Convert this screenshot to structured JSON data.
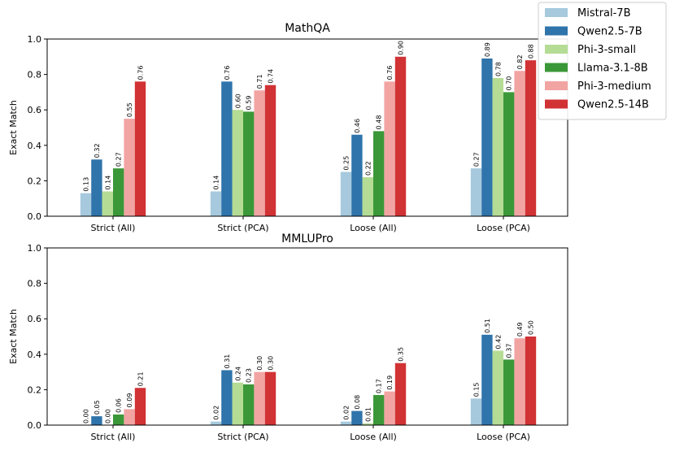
{
  "chart_data": [
    {
      "type": "bar",
      "title": "MathQA",
      "ylabel": "Exact Match",
      "xlabel": "",
      "ylim": [
        0,
        1.0
      ],
      "yticks": [
        0.0,
        0.2,
        0.4,
        0.6,
        0.8,
        1.0
      ],
      "ytick_labels": [
        "0.0",
        "0.2",
        "0.4",
        "0.6",
        "0.8",
        "1.0"
      ],
      "categories": [
        "Strict (All)",
        "Strict (PCA)",
        "Loose (All)",
        "Loose (PCA)"
      ],
      "series": [
        {
          "name": "Mistral-7B",
          "color": "#a6c9dd",
          "values": [
            0.13,
            0.14,
            0.25,
            0.27
          ],
          "labels": [
            "0.13",
            "0.14",
            "0.25",
            "0.27"
          ]
        },
        {
          "name": "Qwen2.5-7B",
          "color": "#2f74ab",
          "values": [
            0.32,
            0.76,
            0.46,
            0.89
          ],
          "labels": [
            "0.32",
            "0.76",
            "0.46",
            "0.89"
          ]
        },
        {
          "name": "Phi-3-small",
          "color": "#b4dc94",
          "values": [
            0.14,
            0.6,
            0.22,
            0.78
          ],
          "labels": [
            "0.14",
            "0.60",
            "0.22",
            "0.78"
          ]
        },
        {
          "name": "Llama-3.1-8B",
          "color": "#3b9838",
          "values": [
            0.27,
            0.59,
            0.48,
            0.7
          ],
          "labels": [
            "0.27",
            "0.59",
            "0.48",
            "0.70"
          ]
        },
        {
          "name": "Phi-3-medium",
          "color": "#f2a4a3",
          "values": [
            0.55,
            0.71,
            0.76,
            0.82
          ],
          "labels": [
            "0.55",
            "0.71",
            "0.76",
            "0.82"
          ]
        },
        {
          "name": "Qwen2.5-14B",
          "color": "#d13234",
          "values": [
            0.76,
            0.74,
            0.9,
            0.88
          ],
          "labels": [
            "0.76",
            "0.74",
            "0.90",
            "0.88"
          ]
        }
      ]
    },
    {
      "type": "bar",
      "title": "MMLUPro",
      "ylabel": "Exact Match",
      "xlabel": "",
      "ylim": [
        0,
        1.0
      ],
      "yticks": [
        0.0,
        0.2,
        0.4,
        0.6,
        0.8,
        1.0
      ],
      "ytick_labels": [
        "0.0",
        "0.2",
        "0.4",
        "0.6",
        "0.8",
        "1.0"
      ],
      "categories": [
        "Strict (All)",
        "Strict (PCA)",
        "Loose (All)",
        "Loose (PCA)"
      ],
      "series": [
        {
          "name": "Mistral-7B",
          "color": "#a6c9dd",
          "values": [
            0.0,
            0.02,
            0.02,
            0.15
          ],
          "labels": [
            "0.00",
            "0.02",
            "0.02",
            "0.15"
          ]
        },
        {
          "name": "Qwen2.5-7B",
          "color": "#2f74ab",
          "values": [
            0.05,
            0.31,
            0.08,
            0.51
          ],
          "labels": [
            "0.05",
            "0.31",
            "0.08",
            "0.51"
          ]
        },
        {
          "name": "Phi-3-small",
          "color": "#b4dc94",
          "values": [
            0.0,
            0.24,
            0.01,
            0.42
          ],
          "labels": [
            "0.00",
            "0.24",
            "0.01",
            "0.42"
          ]
        },
        {
          "name": "Llama-3.1-8B",
          "color": "#3b9838",
          "values": [
            0.06,
            0.23,
            0.17,
            0.37
          ],
          "labels": [
            "0.06",
            "0.23",
            "0.17",
            "0.37"
          ]
        },
        {
          "name": "Phi-3-medium",
          "color": "#f2a4a3",
          "values": [
            0.09,
            0.3,
            0.19,
            0.49
          ],
          "labels": [
            "0.09",
            "0.30",
            "0.19",
            "0.49"
          ]
        },
        {
          "name": "Qwen2.5-14B",
          "color": "#d13234",
          "values": [
            0.21,
            0.3,
            0.35,
            0.5
          ],
          "labels": [
            "0.21",
            "0.30",
            "0.35",
            "0.50"
          ]
        }
      ]
    }
  ],
  "legend": {
    "placement": "top-right",
    "entries": [
      {
        "label": "Mistral-7B",
        "color": "#a6c9dd"
      },
      {
        "label": "Qwen2.5-7B",
        "color": "#2f74ab"
      },
      {
        "label": "Phi-3-small",
        "color": "#b4dc94"
      },
      {
        "label": "Llama-3.1-8B",
        "color": "#3b9838"
      },
      {
        "label": "Phi-3-medium",
        "color": "#f2a4a3"
      },
      {
        "label": "Qwen2.5-14B",
        "color": "#d13234"
      }
    ]
  }
}
